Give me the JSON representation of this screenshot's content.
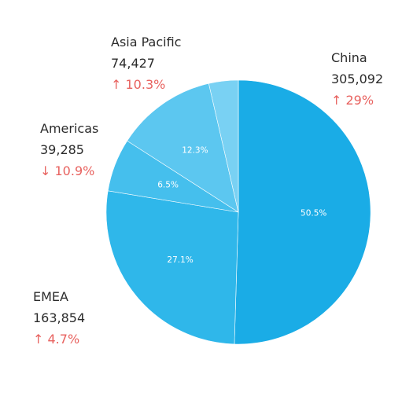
{
  "chart_data": {
    "type": "pie",
    "categories": [
      "China",
      "EMEA",
      "Americas",
      "Asia Pacific",
      ""
    ],
    "values": [
      305092,
      163854,
      39285,
      74427,
      21742
    ],
    "percent_labels": [
      "50.5%",
      "27.1%",
      "6.5%",
      "12.3%",
      ""
    ],
    "colors": [
      "#1aace6",
      "#2fb7ea",
      "#45bfed",
      "#5cc7f0",
      "#79d1f3"
    ],
    "callouts": [
      {
        "name": "China",
        "value": "305,092",
        "change": "↑ 29%"
      },
      {
        "name": "EMEA",
        "value": "163,854",
        "change": "↑ 4.7%"
      },
      {
        "name": "Americas",
        "value": "39,285",
        "change": "↓ 10.9%"
      },
      {
        "name": "Asia Pacific",
        "value": "74,427",
        "change": "↑ 10.3%"
      }
    ],
    "change_color": "#e8625f"
  }
}
